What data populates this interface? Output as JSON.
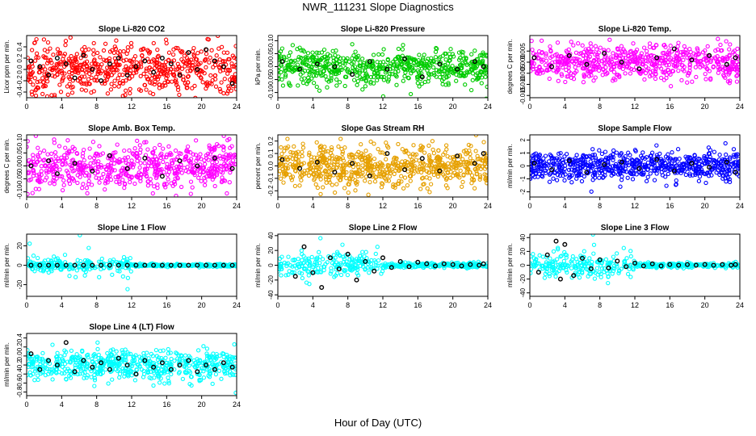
{
  "title": "NWR_111231  Slope Diagnostics",
  "xlabel": "Hour of Day (UTC)",
  "chart_data": [
    {
      "type": "scatter",
      "title": "Slope Li-820 CO2",
      "ylabel": "Licor ppm per min.",
      "xlim": [
        0,
        24
      ],
      "xticks": [
        0,
        4,
        8,
        12,
        16,
        20,
        24
      ],
      "ylim": [
        -0.5,
        0.6
      ],
      "yticks": [
        -0.4,
        -0.2,
        0.0,
        0.2,
        0.4
      ],
      "ytick_labels": [
        "-0.4",
        "-0.2",
        "0.0",
        "0.2",
        "0.4"
      ],
      "color": "#ff0000",
      "spread": 0.22,
      "n_points": 620,
      "black_points": [
        [
          0.5,
          0.15
        ],
        [
          1.5,
          0.05
        ],
        [
          2.5,
          -0.1
        ],
        [
          3.5,
          0.2
        ],
        [
          4.5,
          0.1
        ],
        [
          5.5,
          -0.15
        ],
        [
          6.5,
          0.25
        ],
        [
          7.5,
          0.0
        ],
        [
          8.5,
          -0.2
        ],
        [
          9.5,
          0.1
        ],
        [
          10.5,
          0.2
        ],
        [
          11.5,
          -0.1
        ],
        [
          12.5,
          0.05
        ],
        [
          13.5,
          0.15
        ],
        [
          14.5,
          -0.05
        ],
        [
          15.5,
          0.2
        ],
        [
          16.5,
          0.1
        ],
        [
          17.5,
          -0.1
        ],
        [
          18.5,
          0.3
        ],
        [
          19.5,
          0.0
        ],
        [
          20.5,
          0.35
        ],
        [
          21.5,
          0.15
        ],
        [
          22.5,
          0.05
        ],
        [
          23.5,
          -0.25
        ]
      ]
    },
    {
      "type": "scatter",
      "title": "Slope Li-820 Pressure",
      "ylabel": "kPa per min.",
      "xlim": [
        0,
        24
      ],
      "xticks": [
        0,
        4,
        8,
        12,
        16,
        20,
        24
      ],
      "ylim": [
        -0.12,
        0.12
      ],
      "yticks": [
        -0.1,
        -0.05,
        0.0,
        0.05,
        0.1
      ],
      "ytick_labels": [
        "-0.10",
        "-0.05",
        "0.00",
        "0.05",
        "0.10"
      ],
      "color": "#00cc00",
      "spread": 0.035,
      "n_points": 620,
      "black_points": [
        [
          0.5,
          0.02
        ],
        [
          2.5,
          -0.01
        ],
        [
          4.5,
          0.01
        ],
        [
          6.5,
          0.0
        ],
        [
          8.5,
          -0.03
        ],
        [
          10.5,
          0.02
        ],
        [
          12.5,
          -0.01
        ],
        [
          14.5,
          0.03
        ],
        [
          16.5,
          -0.04
        ],
        [
          18.5,
          0.01
        ],
        [
          20.5,
          -0.01
        ],
        [
          22.5,
          0.02
        ],
        [
          23.5,
          0.0
        ]
      ]
    },
    {
      "type": "scatter",
      "title": "Slope Li-820 Temp.",
      "ylabel": "degrees C per min.",
      "xlim": [
        0,
        24
      ],
      "xticks": [
        0,
        4,
        8,
        12,
        16,
        20,
        24
      ],
      "ylim": [
        -0.016,
        0.012
      ],
      "yticks": [
        -0.015,
        -0.01,
        -0.005,
        0.0,
        0.005
      ],
      "ytick_labels": [
        "-0.015",
        "-0.010",
        "-0.005",
        "0.000",
        "0.005"
      ],
      "color": "#ff00ff",
      "spread": 0.004,
      "n_points": 620,
      "black_points": [
        [
          0.5,
          0.002
        ],
        [
          2.5,
          -0.002
        ],
        [
          4.5,
          0.003
        ],
        [
          6.5,
          -0.001
        ],
        [
          8.5,
          0.004
        ],
        [
          10.5,
          0.0
        ],
        [
          12.5,
          -0.003
        ],
        [
          14.5,
          0.002
        ],
        [
          16.5,
          0.006
        ],
        [
          18.5,
          0.001
        ],
        [
          20.5,
          0.003
        ],
        [
          22.5,
          -0.001
        ],
        [
          23.5,
          0.002
        ]
      ]
    },
    {
      "type": "scatter",
      "title": "Slope Amb. Box Temp.",
      "ylabel": "degrees C per min.",
      "xlim": [
        0,
        24
      ],
      "xticks": [
        0,
        4,
        8,
        12,
        16,
        20,
        24
      ],
      "ylim": [
        -0.12,
        0.12
      ],
      "yticks": [
        -0.1,
        -0.05,
        0.0,
        0.05,
        0.1
      ],
      "ytick_labels": [
        "-0.10",
        "-0.05",
        "0.00",
        "0.05",
        "0.10"
      ],
      "color": "#ff00ff",
      "spread": 0.045,
      "n_points": 620,
      "black_points": [
        [
          0.5,
          0.0
        ],
        [
          2.5,
          0.02
        ],
        [
          3.5,
          -0.03
        ],
        [
          5.5,
          0.01
        ],
        [
          7.5,
          -0.02
        ],
        [
          9.5,
          0.04
        ],
        [
          11.5,
          -0.01
        ],
        [
          13.5,
          0.03
        ],
        [
          15.5,
          -0.04
        ],
        [
          17.5,
          0.02
        ],
        [
          19.5,
          0.0
        ],
        [
          21.5,
          0.03
        ],
        [
          23.5,
          -0.01
        ]
      ]
    },
    {
      "type": "scatter",
      "title": "Slope Gas Stream RH",
      "ylabel": "percent per min.",
      "xlim": [
        0,
        24
      ],
      "xticks": [
        0,
        4,
        8,
        12,
        16,
        20,
        24
      ],
      "ylim": [
        -0.25,
        0.25
      ],
      "yticks": [
        -0.2,
        -0.1,
        0.0,
        0.1,
        0.2
      ],
      "ytick_labels": [
        "-0.2",
        "-0.1",
        "0.0",
        "0.1",
        "0.2"
      ],
      "color": "#e6a000",
      "spread": 0.08,
      "n_points": 700,
      "black_points": [
        [
          0.5,
          0.05
        ],
        [
          2.5,
          -0.02
        ],
        [
          4.5,
          0.03
        ],
        [
          6.5,
          -0.05
        ],
        [
          8.5,
          0.02
        ],
        [
          10.5,
          -0.08
        ],
        [
          12.5,
          0.1
        ],
        [
          14.5,
          -0.03
        ],
        [
          16.5,
          0.06
        ],
        [
          18.5,
          -0.04
        ],
        [
          20.5,
          0.08
        ],
        [
          22.5,
          0.02
        ],
        [
          23.5,
          0.1
        ]
      ]
    },
    {
      "type": "scatter",
      "title": "Slope Sample Flow",
      "ylabel": "ml/min per min.",
      "xlim": [
        0,
        24
      ],
      "xticks": [
        0,
        4,
        8,
        12,
        16,
        20,
        24
      ],
      "ylim": [
        -2.4,
        2.4
      ],
      "yticks": [
        -2,
        -1,
        0,
        1,
        2
      ],
      "ytick_labels": [
        "-2",
        "-1",
        "0",
        "1",
        "2"
      ],
      "color": "#0000ff",
      "spread": 0.55,
      "n_points": 650,
      "black_points": [
        [
          0.5,
          0.2
        ],
        [
          2.5,
          -0.3
        ],
        [
          4.5,
          0.4
        ],
        [
          6.5,
          -0.5
        ],
        [
          8.5,
          0.1
        ],
        [
          10.5,
          0.3
        ],
        [
          12.5,
          -0.2
        ],
        [
          14.5,
          0.5
        ],
        [
          16.5,
          -0.4
        ],
        [
          18.5,
          0.2
        ],
        [
          20.5,
          -0.1
        ],
        [
          22.5,
          0.3
        ],
        [
          23.5,
          -0.5
        ]
      ]
    },
    {
      "type": "scatter",
      "title": "Slope Line 1 Flow",
      "ylabel": "ml/min per min.",
      "xlim": [
        0,
        24
      ],
      "xticks": [
        0,
        4,
        8,
        12,
        16,
        20,
        24
      ],
      "ylim": [
        -32,
        32
      ],
      "yticks": [
        -20,
        0,
        20
      ],
      "ytick_labels": [
        "-20",
        "0",
        "20"
      ],
      "color": "#00ffff",
      "spread": 2.0,
      "n_points": 420,
      "black_points": [
        [
          0.5,
          0
        ],
        [
          1.5,
          0
        ],
        [
          2.5,
          0
        ],
        [
          3.5,
          0
        ],
        [
          4.5,
          0
        ],
        [
          5.5,
          0
        ],
        [
          6.5,
          0
        ],
        [
          7.5,
          0
        ],
        [
          8.5,
          0
        ],
        [
          9.5,
          0
        ],
        [
          10.5,
          0
        ],
        [
          11.5,
          0
        ],
        [
          12.5,
          0
        ],
        [
          13.5,
          0
        ],
        [
          14.5,
          0
        ],
        [
          15.5,
          0
        ],
        [
          16.5,
          0
        ],
        [
          17.5,
          0
        ],
        [
          18.5,
          0
        ],
        [
          19.5,
          0
        ],
        [
          20.5,
          0
        ],
        [
          21.5,
          0
        ],
        [
          22.5,
          0
        ],
        [
          23.5,
          0
        ]
      ]
    },
    {
      "type": "scatter",
      "title": "Slope Line 2 Flow",
      "ylabel": "ml/min per min.",
      "xlim": [
        0,
        24
      ],
      "xticks": [
        0,
        4,
        8,
        12,
        16,
        20,
        24
      ],
      "ylim": [
        -42,
        42
      ],
      "yticks": [
        -40,
        -20,
        0,
        20,
        40
      ],
      "ytick_labels": [
        "-40",
        "-20",
        "0",
        "20",
        "40"
      ],
      "color": "#00ffff",
      "spread": 5.0,
      "n_points": 420,
      "black_points": [
        [
          2.0,
          -15
        ],
        [
          3.0,
          25
        ],
        [
          4.0,
          -10
        ],
        [
          5.0,
          -30
        ],
        [
          6.0,
          10
        ],
        [
          7.0,
          -5
        ],
        [
          8.0,
          15
        ],
        [
          9.0,
          -20
        ],
        [
          10.0,
          5
        ],
        [
          11.0,
          -8
        ],
        [
          12.0,
          10
        ],
        [
          13.0,
          -3
        ],
        [
          14.0,
          5
        ],
        [
          15.0,
          -2
        ],
        [
          16.0,
          4
        ],
        [
          17.0,
          2
        ],
        [
          18.0,
          -1
        ],
        [
          19.0,
          2
        ],
        [
          20.0,
          1
        ],
        [
          21.0,
          -1
        ],
        [
          22.0,
          1
        ],
        [
          23.0,
          0
        ],
        [
          23.5,
          2
        ]
      ]
    },
    {
      "type": "scatter",
      "title": "Slope Line 3 Flow",
      "ylabel": "ml/min per min.",
      "xlim": [
        0,
        24
      ],
      "xticks": [
        0,
        4,
        8,
        12,
        16,
        20,
        24
      ],
      "ylim": [
        -45,
        45
      ],
      "yticks": [
        -40,
        -20,
        0,
        20,
        40
      ],
      "ytick_labels": [
        "-40",
        "-20",
        "0",
        "20",
        "40"
      ],
      "color": "#00ffff",
      "spread": 5.0,
      "n_points": 420,
      "black_points": [
        [
          1.0,
          -10
        ],
        [
          2.0,
          15
        ],
        [
          3.0,
          35
        ],
        [
          3.5,
          -20
        ],
        [
          4.0,
          30
        ],
        [
          5.0,
          -15
        ],
        [
          6.0,
          10
        ],
        [
          7.0,
          -5
        ],
        [
          8.0,
          8
        ],
        [
          9.0,
          -4
        ],
        [
          10.0,
          6
        ],
        [
          11.0,
          -2
        ],
        [
          12.0,
          3
        ],
        [
          13.0,
          -1
        ],
        [
          14.0,
          2
        ],
        [
          15.0,
          -1
        ],
        [
          16.0,
          1
        ],
        [
          17.0,
          0
        ],
        [
          18.0,
          1
        ],
        [
          19.0,
          0
        ],
        [
          20.0,
          1
        ],
        [
          21.0,
          0
        ],
        [
          22.0,
          1
        ],
        [
          23.0,
          0
        ],
        [
          23.5,
          1
        ]
      ]
    },
    {
      "type": "scatter",
      "title": "Slope Line 4 (LT) Flow",
      "ylabel": "ml/min per min.",
      "xlim": [
        0,
        24
      ],
      "xticks": [
        0,
        4,
        8,
        12,
        16,
        20,
        24
      ],
      "ylim": [
        -0.88,
        0.5
      ],
      "yticks": [
        -0.8,
        -0.6,
        -0.4,
        -0.2,
        0.0,
        0.2,
        0.4
      ],
      "ytick_labels": [
        "-0.8",
        "-0.6",
        "-0.4",
        "-0.2",
        "0.0",
        "0.2",
        "0.4"
      ],
      "color": "#00ffff",
      "spread": 0.17,
      "center": -0.2,
      "n_points": 600,
      "black_points": [
        [
          0.5,
          0.05
        ],
        [
          1.5,
          -0.3
        ],
        [
          2.5,
          -0.1
        ],
        [
          3.5,
          -0.2
        ],
        [
          4.5,
          0.3
        ],
        [
          5.5,
          -0.35
        ],
        [
          6.5,
          -0.1
        ],
        [
          7.5,
          -0.25
        ],
        [
          8.5,
          -0.15
        ],
        [
          9.5,
          -0.3
        ],
        [
          10.5,
          -0.05
        ],
        [
          11.5,
          -0.2
        ],
        [
          12.5,
          -0.4
        ],
        [
          13.5,
          -0.1
        ],
        [
          14.5,
          -0.25
        ],
        [
          15.5,
          -0.15
        ],
        [
          16.5,
          -0.3
        ],
        [
          17.5,
          -0.2
        ],
        [
          18.5,
          -0.1
        ],
        [
          19.5,
          -0.35
        ],
        [
          20.5,
          -0.2
        ],
        [
          21.5,
          -0.3
        ],
        [
          22.5,
          -0.15
        ],
        [
          23.5,
          -0.25
        ]
      ]
    }
  ]
}
